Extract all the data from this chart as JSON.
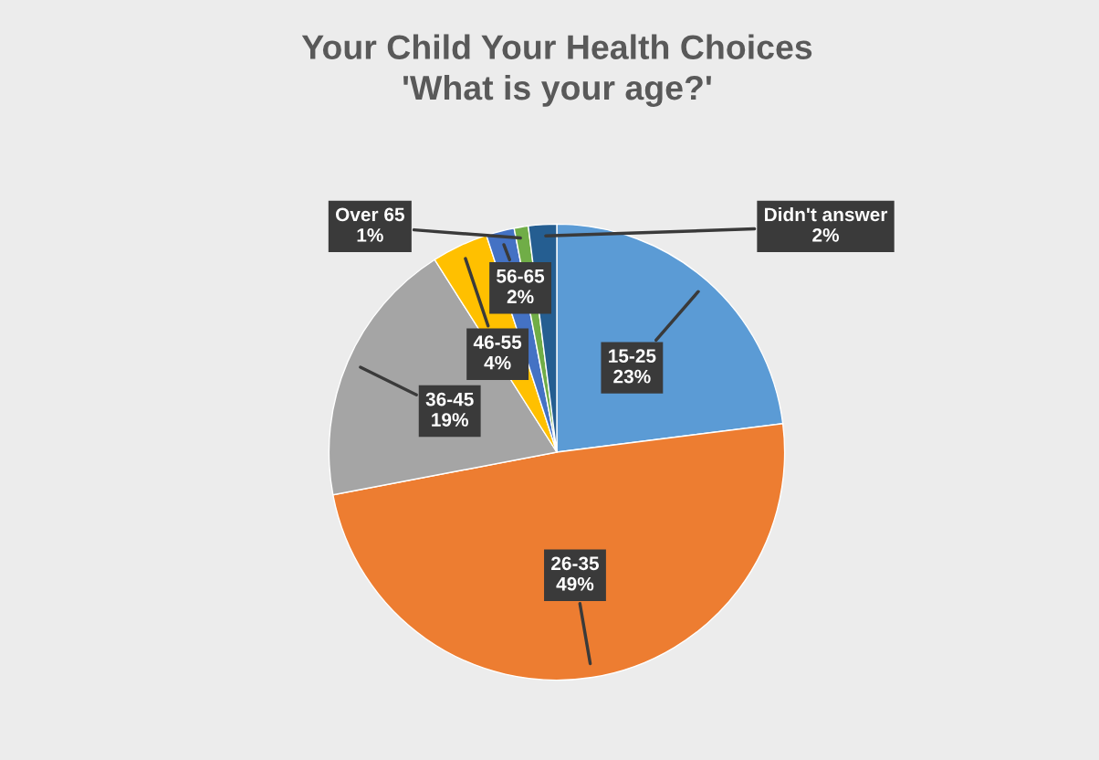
{
  "chart_data": {
    "type": "pie",
    "title": "Your Child Your Health Choices\n'What is your age?'",
    "categories": [
      "15-25",
      "26-35",
      "36-45",
      "46-55",
      "56-65",
      "Over 65",
      "Didn't answer"
    ],
    "values": [
      23,
      49,
      19,
      4,
      2,
      1,
      2
    ],
    "colors": [
      "#5b9bd5",
      "#ed7d31",
      "#a5a5a5",
      "#ffc000",
      "#4472c4",
      "#70ad47",
      "#255e91"
    ],
    "value_labels": [
      "23%",
      "49%",
      "19%",
      "4%",
      "2%",
      "1%",
      "2%"
    ]
  }
}
